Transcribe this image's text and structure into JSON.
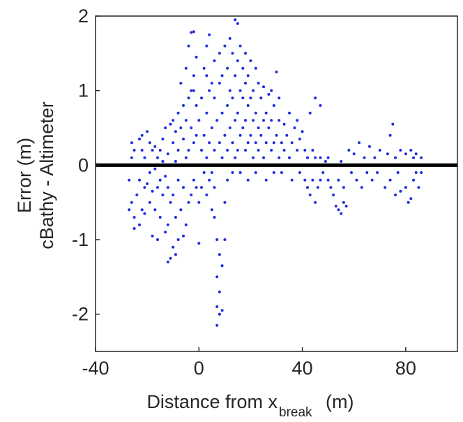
{
  "chart_data": {
    "type": "scatter",
    "title": "",
    "xlabel": {
      "main": "Distance from x",
      "subscript": "break",
      "unit": "(m)"
    },
    "ylabel": [
      "Error (m)",
      "cBathy - Altimeter"
    ],
    "xlim": [
      -40,
      100
    ],
    "ylim": [
      -2.5,
      2
    ],
    "xticks": [
      -40,
      0,
      40,
      80
    ],
    "yticks": [
      -2,
      -1,
      0,
      1,
      2
    ],
    "xtick_labels": [
      "-40",
      "0",
      "40",
      "80"
    ],
    "ytick_labels": [
      "-2",
      "-1",
      "0",
      "1",
      "2"
    ],
    "grid": false,
    "legend": "none",
    "point_color": "#1f2ee0",
    "reference_line": {
      "y": 0,
      "color": "#000000"
    },
    "series": [
      {
        "name": "",
        "points": [
          [
            -27,
            -0.6
          ],
          [
            -27,
            -0.2
          ],
          [
            -26,
            0.1
          ],
          [
            -26,
            0.3
          ],
          [
            -26,
            -0.5
          ],
          [
            -25,
            -0.85
          ],
          [
            -25,
            -0.7
          ],
          [
            -25,
            0.2
          ],
          [
            -24,
            -0.4
          ],
          [
            -24,
            0.0
          ],
          [
            -23,
            -0.2
          ],
          [
            -23,
            0.35
          ],
          [
            -23,
            -0.8
          ],
          [
            -22,
            -0.6
          ],
          [
            -22,
            0.2
          ],
          [
            -22,
            0.4
          ],
          [
            -21,
            -0.3
          ],
          [
            -21,
            0.1
          ],
          [
            -21,
            -0.65
          ],
          [
            -20,
            0.45
          ],
          [
            -20,
            0.0
          ],
          [
            -20,
            -0.25
          ],
          [
            -19,
            0.3
          ],
          [
            -19,
            -0.1
          ],
          [
            -19,
            -0.5
          ],
          [
            -18,
            0.2
          ],
          [
            -18,
            -0.35
          ],
          [
            -18,
            -0.95
          ],
          [
            -17,
            0.25
          ],
          [
            -17,
            -0.05
          ],
          [
            -17,
            -0.6
          ],
          [
            -16,
            -0.3
          ],
          [
            -16,
            0.1
          ],
          [
            -16,
            -1.0
          ],
          [
            -15,
            -0.2
          ],
          [
            -15,
            0.2
          ],
          [
            -15,
            -0.7
          ],
          [
            -14,
            -0.4
          ],
          [
            -14,
            0.35
          ],
          [
            -14,
            0.05
          ],
          [
            -13,
            -0.9
          ],
          [
            -13,
            -0.15
          ],
          [
            -13,
            0.5
          ],
          [
            -12,
            -1.3
          ],
          [
            -12,
            -0.8
          ],
          [
            -12,
            -0.3
          ],
          [
            -12,
            0.15
          ],
          [
            -11,
            -1.25
          ],
          [
            -11,
            0.55
          ],
          [
            -11,
            -0.5
          ],
          [
            -11,
            0.0
          ],
          [
            -10,
            -1.1
          ],
          [
            -10,
            -0.4
          ],
          [
            -10,
            0.3
          ],
          [
            -10,
            0.6
          ],
          [
            -9,
            -1.2
          ],
          [
            -9,
            -0.7
          ],
          [
            -9,
            0.05
          ],
          [
            -9,
            0.45
          ],
          [
            -8,
            -1.0
          ],
          [
            -8,
            -0.2
          ],
          [
            -8,
            0.2
          ],
          [
            -8,
            0.7
          ],
          [
            -7,
            -0.6
          ],
          [
            -7,
            0.0
          ],
          [
            -7,
            0.5
          ],
          [
            -7,
            1.1
          ],
          [
            -6,
            -0.95
          ],
          [
            -6,
            -0.3
          ],
          [
            -6,
            0.35
          ],
          [
            -6,
            0.8
          ],
          [
            -5,
            -0.8
          ],
          [
            -5,
            0.1
          ],
          [
            -5,
            0.6
          ],
          [
            -5,
            1.3
          ],
          [
            -4,
            -0.5
          ],
          [
            -4,
            0.2
          ],
          [
            -4,
            0.9
          ],
          [
            -4,
            1.6
          ],
          [
            -3,
            -0.4
          ],
          [
            -3,
            0.0
          ],
          [
            -3,
            0.5
          ],
          [
            -3,
            1.0
          ],
          [
            -3,
            1.78
          ],
          [
            -2,
            -0.2
          ],
          [
            -2,
            0.3
          ],
          [
            -2,
            1.2
          ],
          [
            -2,
            1.79
          ],
          [
            -1,
            -0.3
          ],
          [
            -1,
            0.4
          ],
          [
            -1,
            0.8
          ],
          [
            -1,
            1.45
          ],
          [
            0,
            -1.05
          ],
          [
            0,
            -0.5
          ],
          [
            0,
            0.0
          ],
          [
            0,
            0.6
          ],
          [
            1,
            -0.3
          ],
          [
            1,
            0.2
          ],
          [
            1,
            0.9
          ],
          [
            2,
            -0.1
          ],
          [
            2,
            0.4
          ],
          [
            2,
            1.3
          ],
          [
            3,
            -0.4
          ],
          [
            3,
            0.1
          ],
          [
            3,
            0.7
          ],
          [
            3,
            1.6
          ],
          [
            4,
            -0.2
          ],
          [
            4,
            0.3
          ],
          [
            4,
            1.0
          ],
          [
            4,
            1.75
          ],
          [
            5,
            -0.6
          ],
          [
            5,
            -0.1
          ],
          [
            5,
            0.5
          ],
          [
            5,
            1.1
          ],
          [
            6,
            -0.7
          ],
          [
            6,
            -0.3
          ],
          [
            6,
            0.2
          ],
          [
            6,
            0.9
          ],
          [
            6,
            1.4
          ],
          [
            7,
            -1.0
          ],
          [
            7,
            -1.5
          ],
          [
            7,
            -1.9
          ],
          [
            7,
            -2.15
          ],
          [
            7,
            0.0
          ],
          [
            7,
            0.6
          ],
          [
            8,
            -1.7
          ],
          [
            8,
            -2.0
          ],
          [
            8,
            -1.2
          ],
          [
            8,
            0.3
          ],
          [
            8,
            1.1
          ],
          [
            8,
            1.5
          ],
          [
            9,
            -1.95
          ],
          [
            9,
            -1.35
          ],
          [
            9,
            0.1
          ],
          [
            9,
            0.7
          ],
          [
            9,
            1.2
          ],
          [
            10,
            -1.0
          ],
          [
            10,
            -0.5
          ],
          [
            10,
            0.4
          ],
          [
            10,
            1.6
          ],
          [
            11,
            -0.2
          ],
          [
            11,
            0.2
          ],
          [
            11,
            0.8
          ],
          [
            11,
            1.3
          ],
          [
            12,
            0.0
          ],
          [
            12,
            0.5
          ],
          [
            12,
            1.0
          ],
          [
            12,
            1.7
          ],
          [
            13,
            -0.1
          ],
          [
            13,
            0.3
          ],
          [
            13,
            0.9
          ],
          [
            13,
            1.5
          ],
          [
            14,
            0.1
          ],
          [
            14,
            0.6
          ],
          [
            14,
            1.2
          ],
          [
            14,
            1.95
          ],
          [
            15,
            0.2
          ],
          [
            15,
            0.7
          ],
          [
            15,
            1.4
          ],
          [
            15,
            1.9
          ],
          [
            16,
            -0.1
          ],
          [
            16,
            0.4
          ],
          [
            16,
            1.0
          ],
          [
            16,
            1.6
          ],
          [
            17,
            0.0
          ],
          [
            17,
            0.5
          ],
          [
            17,
            0.9
          ],
          [
            17,
            1.3
          ],
          [
            18,
            0.2
          ],
          [
            18,
            0.6
          ],
          [
            18,
            1.1
          ],
          [
            18,
            1.5
          ],
          [
            19,
            -0.2
          ],
          [
            19,
            0.3
          ],
          [
            19,
            0.8
          ],
          [
            19,
            1.2
          ],
          [
            20,
            0.0
          ],
          [
            20,
            0.4
          ],
          [
            20,
            0.9
          ],
          [
            20,
            1.4
          ],
          [
            21,
            0.1
          ],
          [
            21,
            0.6
          ],
          [
            21,
            1.0
          ],
          [
            22,
            -0.1
          ],
          [
            22,
            0.3
          ],
          [
            22,
            0.7
          ],
          [
            22,
            1.3
          ],
          [
            23,
            0.2
          ],
          [
            23,
            0.5
          ],
          [
            23,
            1.1
          ],
          [
            24,
            0.0
          ],
          [
            24,
            0.4
          ],
          [
            24,
            0.9
          ],
          [
            25,
            0.1
          ],
          [
            25,
            0.6
          ],
          [
            25,
            1.05
          ],
          [
            26,
            -0.2
          ],
          [
            26,
            0.3
          ],
          [
            26,
            0.7
          ],
          [
            27,
            0.0
          ],
          [
            27,
            0.5
          ],
          [
            27,
            0.95
          ],
          [
            28,
            0.2
          ],
          [
            28,
            0.6
          ],
          [
            29,
            -0.1
          ],
          [
            29,
            0.3
          ],
          [
            29,
            0.8
          ],
          [
            30,
            0.0
          ],
          [
            30,
            0.4
          ],
          [
            31,
            0.1
          ],
          [
            31,
            0.6
          ],
          [
            31,
            0.9
          ],
          [
            32,
            -0.1
          ],
          [
            32,
            0.3
          ],
          [
            33,
            0.2
          ],
          [
            33,
            0.55
          ],
          [
            34,
            0.0
          ],
          [
            34,
            0.4
          ],
          [
            35,
            0.1
          ],
          [
            35,
            0.7
          ],
          [
            36,
            -0.2
          ],
          [
            36,
            0.3
          ],
          [
            37,
            0.0
          ],
          [
            37,
            0.5
          ],
          [
            38,
            0.2
          ],
          [
            38,
            0.6
          ],
          [
            39,
            -0.1
          ],
          [
            39,
            0.35
          ],
          [
            40,
            0.0
          ],
          [
            40,
            0.45
          ],
          [
            41,
            -0.2
          ],
          [
            41,
            0.2
          ],
          [
            42,
            0.1
          ],
          [
            42,
            -0.3
          ],
          [
            43,
            0.0
          ],
          [
            43,
            -0.4
          ],
          [
            44,
            0.2
          ],
          [
            44,
            -0.2
          ],
          [
            45,
            0.1
          ],
          [
            45,
            -0.5
          ],
          [
            46,
            0.0
          ],
          [
            46,
            -0.3
          ],
          [
            47,
            0.1
          ],
          [
            47,
            -0.2
          ],
          [
            48,
            0.0
          ],
          [
            48,
            -0.1
          ],
          [
            49,
            0.05
          ],
          [
            50,
            -0.2
          ],
          [
            50,
            0.1
          ],
          [
            51,
            -0.3
          ],
          [
            52,
            0.0
          ],
          [
            52,
            -0.4
          ],
          [
            53,
            -0.55
          ],
          [
            54,
            -0.6
          ],
          [
            54,
            -0.2
          ],
          [
            55,
            -0.65
          ],
          [
            55,
            0.05
          ],
          [
            56,
            -0.5
          ],
          [
            56,
            -0.3
          ],
          [
            57,
            -0.55
          ],
          [
            58,
            0.0
          ],
          [
            58,
            0.2
          ],
          [
            59,
            -0.1
          ],
          [
            60,
            0.15
          ],
          [
            61,
            -0.2
          ],
          [
            62,
            0.3
          ],
          [
            62,
            0.0
          ],
          [
            63,
            -0.3
          ],
          [
            64,
            0.1
          ],
          [
            65,
            -0.1
          ],
          [
            66,
            0.25
          ],
          [
            67,
            0.0
          ],
          [
            67,
            -0.2
          ],
          [
            68,
            0.1
          ],
          [
            69,
            -0.1
          ],
          [
            70,
            0.2
          ],
          [
            71,
            0.0
          ],
          [
            72,
            -0.3
          ],
          [
            73,
            0.15
          ],
          [
            74,
            0.4
          ],
          [
            74,
            -0.2
          ],
          [
            75,
            0.55
          ],
          [
            75,
            0.0
          ],
          [
            76,
            0.1
          ],
          [
            76,
            -0.4
          ],
          [
            77,
            -0.1
          ],
          [
            78,
            0.2
          ],
          [
            78,
            -0.35
          ],
          [
            79,
            0.0
          ],
          [
            80,
            -0.3
          ],
          [
            80,
            0.15
          ],
          [
            81,
            -0.5
          ],
          [
            81,
            0.0
          ],
          [
            82,
            -0.45
          ],
          [
            82,
            0.2
          ],
          [
            83,
            -0.2
          ],
          [
            83,
            0.1
          ],
          [
            84,
            -0.1
          ],
          [
            84,
            0.15
          ],
          [
            85,
            -0.3
          ],
          [
            85,
            0.0
          ],
          [
            86,
            0.1
          ],
          [
            86,
            -0.1
          ],
          [
            45,
            0.9
          ],
          [
            43,
            0.7
          ],
          [
            47,
            0.8
          ],
          [
            30,
            1.25
          ],
          [
            28,
            1.0
          ],
          [
            -2,
            1.0
          ],
          [
            3,
            1.2
          ]
        ]
      }
    ]
  }
}
